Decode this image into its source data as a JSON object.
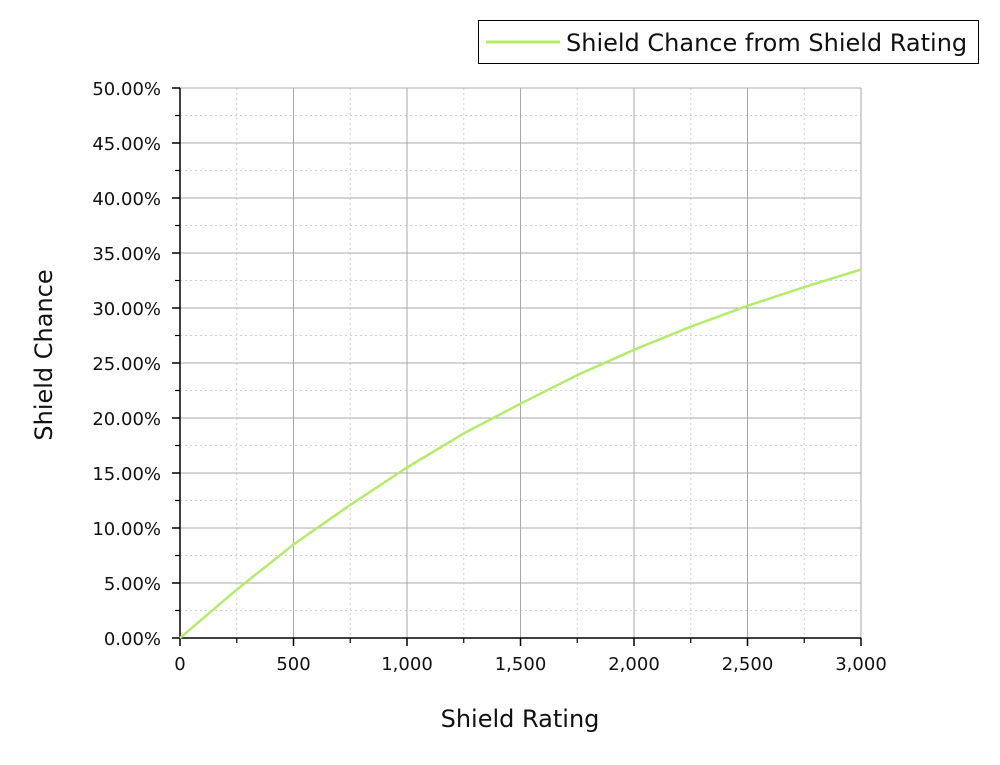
{
  "chart_data": {
    "type": "line",
    "title": "",
    "xlabel": "Shield Rating",
    "ylabel": "Shield Chance",
    "xlim": [
      0,
      3000
    ],
    "ylim": [
      0,
      50
    ],
    "x_ticks": [
      0,
      500,
      1000,
      1500,
      2000,
      2500,
      3000
    ],
    "x_tick_labels": [
      "0",
      "500",
      "1,000",
      "1,500",
      "2,000",
      "2,500",
      "3,000"
    ],
    "y_ticks": [
      0,
      5,
      10,
      15,
      20,
      25,
      30,
      35,
      40,
      45,
      50
    ],
    "y_tick_labels": [
      "0.00%",
      "5.00%",
      "10.00%",
      "15.00%",
      "20.00%",
      "25.00%",
      "30.00%",
      "35.00%",
      "40.00%",
      "45.00%",
      "50.00%"
    ],
    "grid": true,
    "legend_position": "top-right",
    "series": [
      {
        "name": "Shield Chance from Shield Rating",
        "color": "#b4eb6a",
        "x": [
          0,
          250,
          500,
          750,
          1000,
          1250,
          1500,
          1750,
          2000,
          2250,
          2500,
          2750,
          3000
        ],
        "y": [
          0,
          4.4,
          8.5,
          12.1,
          15.5,
          18.6,
          21.3,
          23.9,
          26.2,
          28.3,
          30.2,
          31.9,
          33.5
        ]
      }
    ]
  }
}
